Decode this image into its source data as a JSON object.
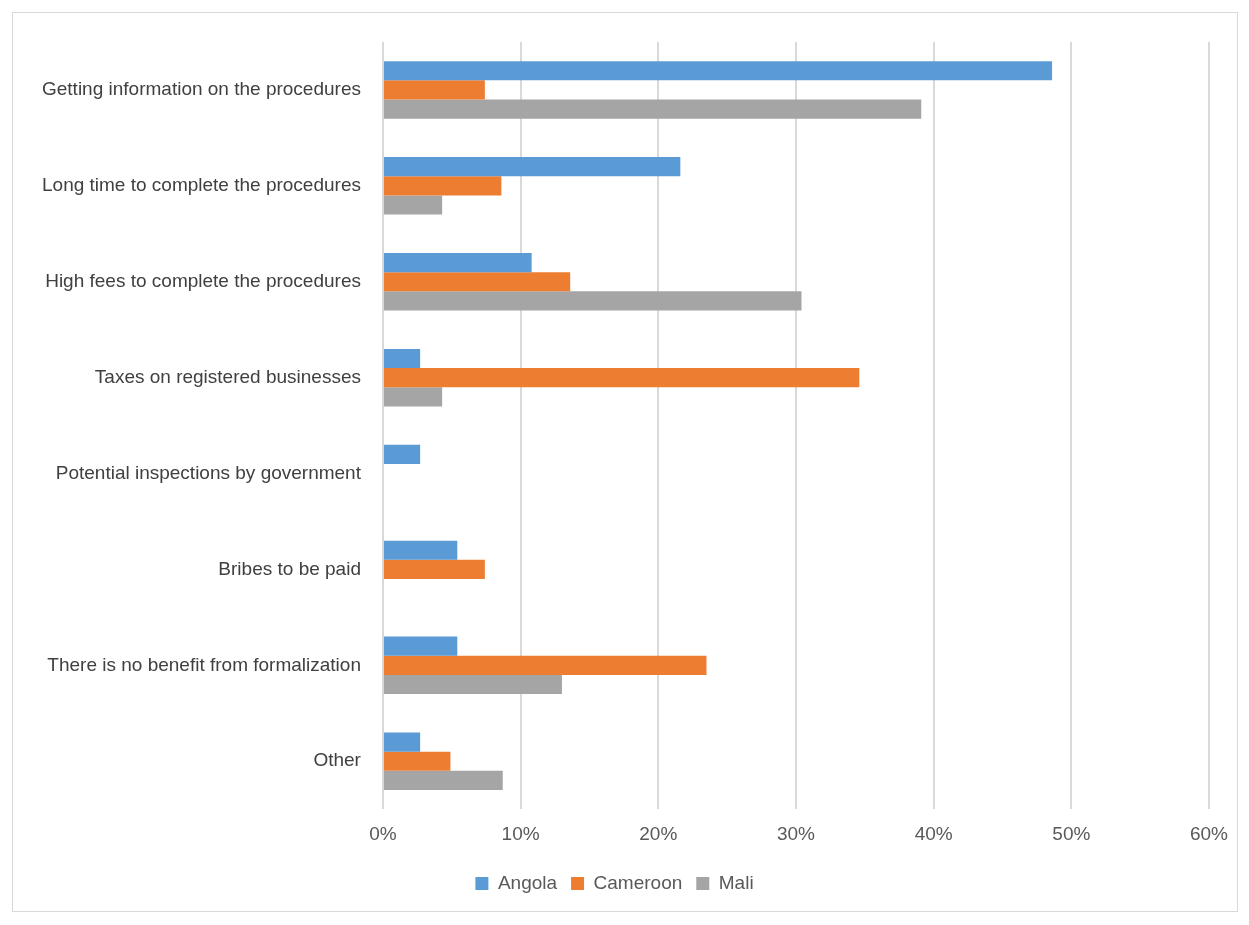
{
  "chart_data": {
    "type": "bar",
    "orientation": "horizontal",
    "categories": [
      "Getting information on the procedures",
      "Long time to complete the procedures",
      "High fees to complete the procedures",
      "Taxes on registered businesses",
      "Potential inspections by government",
      "Bribes to be paid",
      "There is no benefit from formalization",
      "Other"
    ],
    "series": [
      {
        "name": "Angola",
        "color": "#5b9bd5",
        "values": [
          48.6,
          21.6,
          10.8,
          2.7,
          2.7,
          5.4,
          5.4,
          2.7
        ]
      },
      {
        "name": "Cameroon",
        "color": "#ed7d31",
        "values": [
          7.4,
          8.6,
          13.6,
          34.6,
          null,
          7.4,
          23.5,
          4.9
        ]
      },
      {
        "name": "Mali",
        "color": "#a5a5a5",
        "values": [
          39.1,
          4.3,
          30.4,
          4.3,
          null,
          null,
          13.0,
          8.7
        ]
      }
    ],
    "xlim": [
      0,
      60
    ],
    "xticks": [
      {
        "value": 0,
        "label": "0%"
      },
      {
        "value": 10,
        "label": "10%"
      },
      {
        "value": 20,
        "label": "20%"
      },
      {
        "value": 30,
        "label": "30%"
      },
      {
        "value": 40,
        "label": "40%"
      },
      {
        "value": 50,
        "label": "50%"
      },
      {
        "value": 60,
        "label": "60%"
      }
    ],
    "grid": "x",
    "legend": "bottom"
  }
}
